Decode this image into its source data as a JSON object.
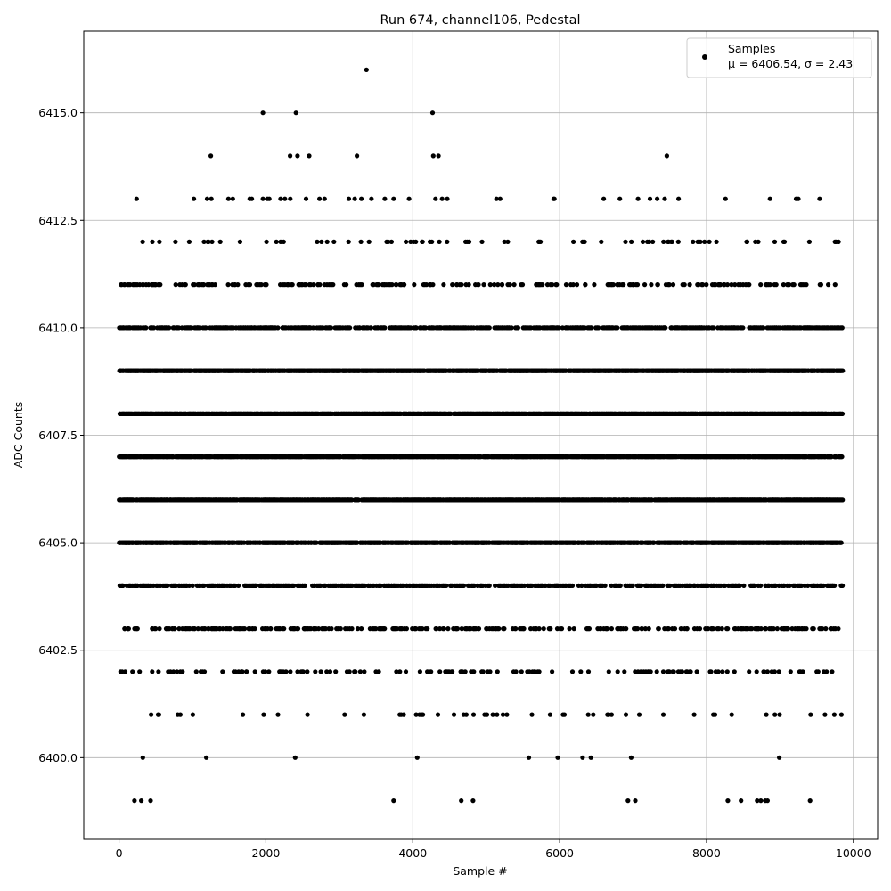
{
  "chart_data": {
    "type": "scatter",
    "title": "Run 674, channel106, Pedestal",
    "xlabel": "Sample #",
    "ylabel": "ADC Counts",
    "xlim": [
      -480,
      10330
    ],
    "ylim": [
      6398.1,
      6416.9
    ],
    "x_ticks": [
      0,
      2000,
      4000,
      6000,
      8000,
      10000
    ],
    "y_ticks": [
      6400.0,
      6402.5,
      6405.0,
      6407.5,
      6410.0,
      6412.5,
      6415.0
    ],
    "x_tick_labels": [
      "0",
      "2000",
      "4000",
      "6000",
      "8000",
      "10000"
    ],
    "y_tick_labels": [
      "6400.0",
      "6402.5",
      "6405.0",
      "6407.5",
      "6410.0",
      "6412.5",
      "6415.0"
    ],
    "grid": true,
    "legend_position": "top-right",
    "series": [
      {
        "name": "Samples",
        "stats_label": "μ = 6406.54, σ = 2.43",
        "color": "#000000",
        "marker": "circle",
        "sample_count": 9850,
        "level_densities": {
          "6399": 0.0015,
          "6400": 0.01,
          "6401": 0.035,
          "6402": 0.09,
          "6403": 0.22,
          "6404": 0.35,
          "6405": 0.55,
          "6406": 0.75,
          "6407": 0.8,
          "6408": 0.8,
          "6409": 0.7,
          "6410": 0.45,
          "6411": 0.16,
          "6412": 0.055,
          "6413": 0.012
        },
        "outliers": [
          {
            "x": 210,
            "y": 6399
          },
          {
            "x": 430,
            "y": 6399
          },
          {
            "x": 3740,
            "y": 6399
          },
          {
            "x": 4660,
            "y": 6399
          },
          {
            "x": 6930,
            "y": 6399
          },
          {
            "x": 7030,
            "y": 6399
          },
          {
            "x": 8290,
            "y": 6399
          },
          {
            "x": 8470,
            "y": 6399
          },
          {
            "x": 8690,
            "y": 6399
          },
          {
            "x": 8740,
            "y": 6399
          },
          {
            "x": 8800,
            "y": 6399
          },
          {
            "x": 8830,
            "y": 6399
          },
          {
            "x": 9410,
            "y": 6399
          },
          {
            "x": 240,
            "y": 6413
          },
          {
            "x": 1020,
            "y": 6413
          },
          {
            "x": 1200,
            "y": 6413
          },
          {
            "x": 1490,
            "y": 6413
          },
          {
            "x": 1550,
            "y": 6413
          },
          {
            "x": 1780,
            "y": 6413
          },
          {
            "x": 1960,
            "y": 6413
          },
          {
            "x": 2020,
            "y": 6413
          },
          {
            "x": 2200,
            "y": 6413
          },
          {
            "x": 2260,
            "y": 6413
          },
          {
            "x": 2730,
            "y": 6413
          },
          {
            "x": 2800,
            "y": 6413
          },
          {
            "x": 3130,
            "y": 6413
          },
          {
            "x": 3210,
            "y": 6413
          },
          {
            "x": 3300,
            "y": 6413
          },
          {
            "x": 3620,
            "y": 6413
          },
          {
            "x": 3740,
            "y": 6413
          },
          {
            "x": 3950,
            "y": 6413
          },
          {
            "x": 4310,
            "y": 6413
          },
          {
            "x": 4400,
            "y": 6413
          },
          {
            "x": 4470,
            "y": 6413
          },
          {
            "x": 5140,
            "y": 6413
          },
          {
            "x": 5190,
            "y": 6413
          },
          {
            "x": 6600,
            "y": 6413
          },
          {
            "x": 6820,
            "y": 6413
          },
          {
            "x": 7230,
            "y": 6413
          },
          {
            "x": 7430,
            "y": 6413
          },
          {
            "x": 7620,
            "y": 6413
          },
          {
            "x": 9220,
            "y": 6413
          },
          {
            "x": 9250,
            "y": 6413
          },
          {
            "x": 9540,
            "y": 6413
          },
          {
            "x": 1250,
            "y": 6414
          },
          {
            "x": 2330,
            "y": 6414
          },
          {
            "x": 2430,
            "y": 6414
          },
          {
            "x": 2590,
            "y": 6414
          },
          {
            "x": 3240,
            "y": 6414
          },
          {
            "x": 4280,
            "y": 6414
          },
          {
            "x": 4350,
            "y": 6414
          },
          {
            "x": 7460,
            "y": 6414
          },
          {
            "x": 1960,
            "y": 6415
          },
          {
            "x": 2410,
            "y": 6415
          },
          {
            "x": 4270,
            "y": 6415
          },
          {
            "x": 3370,
            "y": 6416
          }
        ]
      }
    ]
  }
}
